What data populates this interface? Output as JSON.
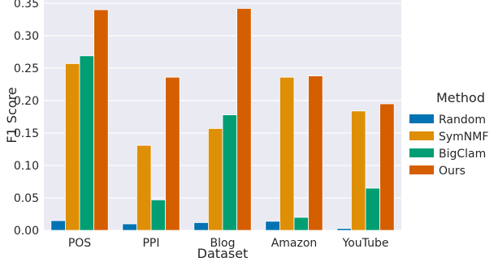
{
  "chart_data": {
    "type": "bar",
    "xlabel": "Dataset",
    "ylabel": "F1 Score",
    "ylim": [
      0,
      0.355
    ],
    "yticks": [
      0.0,
      0.05,
      0.1,
      0.15,
      0.2,
      0.25,
      0.3,
      0.35
    ],
    "ytick_labels": [
      "0.00",
      "0.05",
      "0.10",
      "0.15",
      "0.20",
      "0.25",
      "0.30",
      "0.35"
    ],
    "grid": true,
    "legend_title": "Method",
    "legend_position": "right",
    "categories": [
      "POS",
      "PPI",
      "Blog",
      "Amazon",
      "YouTube"
    ],
    "series": [
      {
        "name": "Random",
        "color": "#0173b2",
        "values": [
          0.015,
          0.01,
          0.012,
          0.014,
          0.003
        ]
      },
      {
        "name": "SymNMF",
        "color": "#de8f05",
        "values": [
          0.257,
          0.131,
          0.157,
          0.236,
          0.184
        ]
      },
      {
        "name": "BigClam",
        "color": "#029e73",
        "values": [
          0.269,
          0.047,
          0.178,
          0.02,
          0.065
        ]
      },
      {
        "name": "Ours",
        "color": "#d55e00",
        "values": [
          0.34,
          0.236,
          0.342,
          0.238,
          0.195
        ]
      }
    ]
  }
}
